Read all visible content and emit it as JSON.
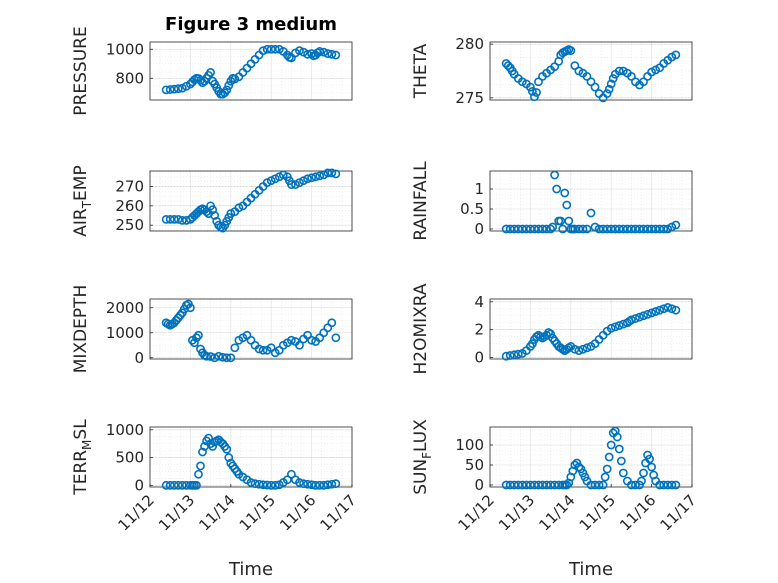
{
  "figure_title": "Figure 3 medium",
  "chart_data": [
    {
      "id": "pressure",
      "type": "scatter",
      "title": "Figure 3 medium",
      "ylabel": "PRESSURE",
      "xlabel": "",
      "ylim": [
        650,
        1050
      ],
      "yticks": [
        800,
        1000
      ],
      "ytick_labels": [
        "800",
        "1000"
      ],
      "xlim": [
        0,
        5
      ],
      "xticks": [],
      "xtick_labels": [],
      "x": [
        0.4,
        0.5,
        0.6,
        0.7,
        0.8,
        0.9,
        1.0,
        1.05,
        1.1,
        1.15,
        1.2,
        1.25,
        1.3,
        1.35,
        1.4,
        1.45,
        1.5,
        1.55,
        1.6,
        1.65,
        1.7,
        1.75,
        1.8,
        1.85,
        1.9,
        1.95,
        2.0,
        2.05,
        2.1,
        2.2,
        2.3,
        2.4,
        2.5,
        2.6,
        2.7,
        2.8,
        2.9,
        3.0,
        3.1,
        3.2,
        3.3,
        3.4,
        3.45,
        3.5,
        3.6,
        3.7,
        3.8,
        3.9,
        4.0,
        4.05,
        4.1,
        4.15,
        4.2,
        4.3,
        4.4,
        4.5,
        4.6
      ],
      "y": [
        720,
        722,
        725,
        728,
        732,
        745,
        760,
        775,
        790,
        800,
        798,
        785,
        770,
        780,
        800,
        820,
        840,
        780,
        760,
        735,
        710,
        690,
        690,
        700,
        720,
        750,
        780,
        800,
        795,
        810,
        840,
        870,
        900,
        930,
        960,
        990,
        1000,
        1000,
        1000,
        1000,
        985,
        960,
        945,
        940,
        975,
        990,
        980,
        965,
        970,
        955,
        960,
        975,
        985,
        980,
        970,
        965,
        960
      ]
    },
    {
      "id": "theta",
      "type": "scatter",
      "title": "",
      "ylabel": "THETA",
      "xlabel": "",
      "ylim": [
        274.8,
        280.2
      ],
      "yticks": [
        275,
        280
      ],
      "ytick_labels": [
        "275",
        "280"
      ],
      "xlim": [
        0,
        5
      ],
      "xticks": [],
      "xtick_labels": [],
      "x": [
        0.4,
        0.45,
        0.5,
        0.55,
        0.6,
        0.7,
        0.8,
        0.9,
        1.0,
        1.05,
        1.1,
        1.15,
        1.2,
        1.3,
        1.4,
        1.5,
        1.6,
        1.7,
        1.75,
        1.8,
        1.85,
        1.9,
        1.95,
        2.0,
        2.1,
        2.2,
        2.3,
        2.4,
        2.5,
        2.6,
        2.7,
        2.8,
        2.9,
        2.95,
        3.0,
        3.05,
        3.1,
        3.2,
        3.3,
        3.4,
        3.5,
        3.6,
        3.7,
        3.8,
        3.9,
        4.0,
        4.1,
        4.2,
        4.3,
        4.4,
        4.5,
        4.6
      ],
      "y": [
        278.2,
        278.0,
        277.8,
        277.5,
        277.2,
        276.8,
        276.5,
        276.3,
        276.0,
        275.6,
        275.1,
        275.5,
        276.5,
        277.0,
        277.3,
        277.6,
        277.9,
        278.4,
        279.0,
        279.2,
        279.3,
        279.4,
        279.5,
        279.4,
        278.0,
        277.5,
        277.3,
        277.0,
        276.5,
        276.0,
        275.4,
        275.0,
        275.4,
        275.8,
        276.3,
        276.8,
        277.2,
        277.5,
        277.5,
        277.3,
        277.0,
        276.5,
        276.2,
        276.5,
        277.0,
        277.4,
        277.6,
        277.8,
        278.2,
        278.5,
        278.8,
        279.0
      ]
    },
    {
      "id": "air_temp",
      "type": "scatter",
      "title": "",
      "ylabel": "AIR_TEMP",
      "xlabel": "",
      "ylim": [
        247,
        278
      ],
      "yticks": [
        250,
        260,
        270
      ],
      "ytick_labels": [
        "250",
        "260",
        "270"
      ],
      "xlim": [
        0,
        5
      ],
      "xticks": [],
      "xtick_labels": [],
      "x": [
        0.4,
        0.5,
        0.6,
        0.7,
        0.8,
        0.9,
        1.0,
        1.05,
        1.1,
        1.15,
        1.2,
        1.25,
        1.3,
        1.35,
        1.4,
        1.45,
        1.5,
        1.55,
        1.6,
        1.65,
        1.7,
        1.75,
        1.8,
        1.85,
        1.9,
        1.95,
        2.0,
        2.1,
        2.2,
        2.3,
        2.4,
        2.5,
        2.6,
        2.7,
        2.8,
        2.9,
        3.0,
        3.1,
        3.2,
        3.3,
        3.4,
        3.45,
        3.5,
        3.6,
        3.7,
        3.8,
        3.9,
        4.0,
        4.1,
        4.2,
        4.3,
        4.4,
        4.5,
        4.6
      ],
      "y": [
        253,
        253,
        253,
        253,
        252.5,
        252.5,
        253,
        254,
        255,
        256,
        257,
        258,
        258.5,
        258,
        257,
        256,
        260,
        258,
        255,
        252,
        250,
        249,
        248.5,
        250,
        252,
        254,
        256,
        257,
        259,
        260,
        262,
        264,
        266,
        268,
        270,
        272,
        273,
        274,
        275,
        276,
        275,
        273,
        271,
        271,
        272,
        273,
        274,
        274.5,
        275,
        275.5,
        276,
        277,
        277,
        276.5
      ]
    },
    {
      "id": "rainfall",
      "type": "scatter",
      "title": "",
      "ylabel": "RAINFALL",
      "xlabel": "",
      "ylim": [
        -0.05,
        1.45
      ],
      "yticks": [
        0,
        0.5,
        1
      ],
      "ytick_labels": [
        "0",
        "0.5",
        "1"
      ],
      "xlim": [
        0,
        5
      ],
      "xticks": [],
      "xtick_labels": [],
      "x": [
        0.4,
        0.5,
        0.6,
        0.7,
        0.8,
        0.9,
        1.0,
        1.1,
        1.2,
        1.3,
        1.4,
        1.5,
        1.55,
        1.6,
        1.65,
        1.7,
        1.75,
        1.8,
        1.85,
        1.9,
        1.95,
        2.0,
        2.05,
        2.1,
        2.2,
        2.3,
        2.4,
        2.5,
        2.6,
        2.7,
        2.8,
        2.9,
        3.0,
        3.1,
        3.2,
        3.3,
        3.4,
        3.5,
        3.6,
        3.7,
        3.8,
        3.9,
        4.0,
        4.1,
        4.2,
        4.3,
        4.4,
        4.5,
        4.6
      ],
      "y": [
        0,
        0,
        0,
        0,
        0,
        0,
        0,
        0,
        0,
        0,
        0,
        0,
        0.05,
        1.35,
        1.0,
        0.2,
        0.2,
        0,
        0.9,
        0.6,
        0.2,
        0,
        0,
        0,
        0,
        0,
        0,
        0.4,
        0.05,
        0,
        0,
        0,
        0,
        0,
        0,
        0,
        0,
        0,
        0,
        0,
        0,
        0,
        0,
        0,
        0,
        0,
        0,
        0.05,
        0.1
      ]
    },
    {
      "id": "mixdepth",
      "type": "scatter",
      "title": "",
      "ylabel": "MIXDEPTH",
      "xlabel": "",
      "ylim": [
        -50,
        2350
      ],
      "yticks": [
        0,
        1000,
        2000
      ],
      "ytick_labels": [
        "0",
        "1000",
        "2000"
      ],
      "xlim": [
        0,
        5
      ],
      "xticks": [],
      "xtick_labels": [],
      "x": [
        0.4,
        0.45,
        0.5,
        0.55,
        0.6,
        0.65,
        0.7,
        0.75,
        0.8,
        0.85,
        0.9,
        0.95,
        1.0,
        1.05,
        1.1,
        1.15,
        1.2,
        1.25,
        1.3,
        1.35,
        1.4,
        1.5,
        1.6,
        1.7,
        1.8,
        1.9,
        2.0,
        2.1,
        2.2,
        2.3,
        2.4,
        2.5,
        2.6,
        2.7,
        2.8,
        2.9,
        3.0,
        3.1,
        3.2,
        3.3,
        3.4,
        3.5,
        3.6,
        3.7,
        3.8,
        3.9,
        4.0,
        4.1,
        4.2,
        4.3,
        4.4,
        4.5,
        4.6
      ],
      "y": [
        1400,
        1350,
        1300,
        1350,
        1400,
        1500,
        1600,
        1700,
        1800,
        1950,
        2100,
        2150,
        2000,
        700,
        600,
        800,
        900,
        350,
        200,
        100,
        60,
        50,
        0,
        60,
        20,
        0,
        0,
        400,
        700,
        800,
        900,
        700,
        500,
        350,
        300,
        300,
        400,
        200,
        300,
        500,
        600,
        700,
        650,
        500,
        750,
        900,
        700,
        650,
        800,
        1000,
        1200,
        1400,
        800
      ]
    },
    {
      "id": "h2omixra",
      "type": "scatter",
      "title": "",
      "ylabel": "H2OMIXRA",
      "xlabel": "",
      "ylim": [
        -0.1,
        4.2
      ],
      "yticks": [
        0,
        2,
        4
      ],
      "ytick_labels": [
        "0",
        "2",
        "4"
      ],
      "xlim": [
        0,
        5
      ],
      "xticks": [],
      "xtick_labels": [],
      "x": [
        0.4,
        0.5,
        0.6,
        0.7,
        0.8,
        0.9,
        1.0,
        1.05,
        1.1,
        1.15,
        1.2,
        1.25,
        1.3,
        1.35,
        1.4,
        1.45,
        1.5,
        1.55,
        1.6,
        1.65,
        1.7,
        1.75,
        1.8,
        1.85,
        1.9,
        1.95,
        2.0,
        2.1,
        2.2,
        2.3,
        2.4,
        2.5,
        2.6,
        2.7,
        2.8,
        2.9,
        3.0,
        3.1,
        3.2,
        3.3,
        3.4,
        3.45,
        3.5,
        3.6,
        3.7,
        3.8,
        3.9,
        4.0,
        4.1,
        4.2,
        4.3,
        4.4,
        4.5,
        4.6
      ],
      "y": [
        0.1,
        0.15,
        0.2,
        0.25,
        0.3,
        0.5,
        0.8,
        1.0,
        1.3,
        1.5,
        1.6,
        1.5,
        1.4,
        1.5,
        1.6,
        1.8,
        1.7,
        1.4,
        1.2,
        1.0,
        0.8,
        0.7,
        0.6,
        0.5,
        0.6,
        0.7,
        0.8,
        0.6,
        0.5,
        0.6,
        0.7,
        0.8,
        1.0,
        1.3,
        1.6,
        1.9,
        2.1,
        2.2,
        2.3,
        2.4,
        2.5,
        2.6,
        2.7,
        2.8,
        2.9,
        3.0,
        3.1,
        3.2,
        3.3,
        3.4,
        3.5,
        3.6,
        3.5,
        3.4
      ]
    },
    {
      "id": "terr_msl",
      "type": "scatter",
      "title": "",
      "ylabel": "TERR_MSL",
      "xlabel": "Time",
      "ylim": [
        -30,
        1050
      ],
      "yticks": [
        0,
        500,
        1000
      ],
      "ytick_labels": [
        "0",
        "500",
        "1000"
      ],
      "xlim": [
        0,
        5
      ],
      "xticks": [
        0,
        1,
        2,
        3,
        4,
        5
      ],
      "xtick_labels": [
        "11/12",
        "11/13",
        "11/14",
        "11/15",
        "11/16",
        "11/17"
      ],
      "x": [
        0.4,
        0.5,
        0.6,
        0.7,
        0.8,
        0.9,
        1.0,
        1.05,
        1.1,
        1.15,
        1.2,
        1.25,
        1.3,
        1.35,
        1.4,
        1.45,
        1.5,
        1.55,
        1.6,
        1.65,
        1.7,
        1.75,
        1.8,
        1.85,
        1.9,
        1.95,
        2.0,
        2.05,
        2.1,
        2.15,
        2.2,
        2.3,
        2.4,
        2.5,
        2.6,
        2.7,
        2.8,
        2.9,
        3.0,
        3.1,
        3.2,
        3.3,
        3.4,
        3.5,
        3.6,
        3.7,
        3.8,
        3.9,
        4.0,
        4.1,
        4.2,
        4.3,
        4.4,
        4.5,
        4.6
      ],
      "y": [
        0,
        0,
        0,
        0,
        0,
        0,
        0,
        0,
        0,
        0,
        200,
        350,
        600,
        700,
        800,
        850,
        750,
        700,
        780,
        800,
        820,
        780,
        750,
        700,
        650,
        500,
        400,
        350,
        300,
        250,
        200,
        150,
        100,
        50,
        30,
        20,
        10,
        5,
        0,
        0,
        10,
        50,
        100,
        200,
        100,
        50,
        30,
        20,
        10,
        0,
        0,
        0,
        10,
        20,
        30
      ]
    },
    {
      "id": "sun_flux",
      "type": "scatter",
      "title": "",
      "ylabel": "SUN_FLUX",
      "xlabel": "Time",
      "ylim": [
        -5,
        145
      ],
      "yticks": [
        0,
        50,
        100
      ],
      "ytick_labels": [
        "0",
        "50",
        "100"
      ],
      "xlim": [
        0,
        5
      ],
      "xticks": [
        0,
        1,
        2,
        3,
        4,
        5
      ],
      "xtick_labels": [
        "11/12",
        "11/13",
        "11/14",
        "11/15",
        "11/16",
        "11/17"
      ],
      "x": [
        0.4,
        0.5,
        0.6,
        0.7,
        0.8,
        0.9,
        1.0,
        1.1,
        1.2,
        1.3,
        1.4,
        1.5,
        1.6,
        1.7,
        1.8,
        1.85,
        1.9,
        1.95,
        2.0,
        2.05,
        2.1,
        2.15,
        2.2,
        2.25,
        2.3,
        2.35,
        2.4,
        2.5,
        2.6,
        2.7,
        2.8,
        2.85,
        2.9,
        2.95,
        3.0,
        3.05,
        3.1,
        3.15,
        3.2,
        3.25,
        3.3,
        3.4,
        3.5,
        3.6,
        3.7,
        3.75,
        3.8,
        3.85,
        3.9,
        3.95,
        4.0,
        4.05,
        4.1,
        4.2,
        4.3,
        4.4,
        4.5,
        4.6
      ],
      "y": [
        0,
        0,
        0,
        0,
        0,
        0,
        0,
        0,
        0,
        0,
        0,
        0,
        0,
        0,
        0,
        0,
        0,
        5,
        20,
        35,
        50,
        55,
        45,
        40,
        30,
        20,
        10,
        0,
        0,
        0,
        0,
        20,
        40,
        70,
        100,
        130,
        135,
        120,
        90,
        60,
        30,
        10,
        0,
        0,
        0,
        10,
        30,
        55,
        75,
        65,
        45,
        25,
        10,
        0,
        0,
        0,
        0,
        0
      ]
    }
  ]
}
